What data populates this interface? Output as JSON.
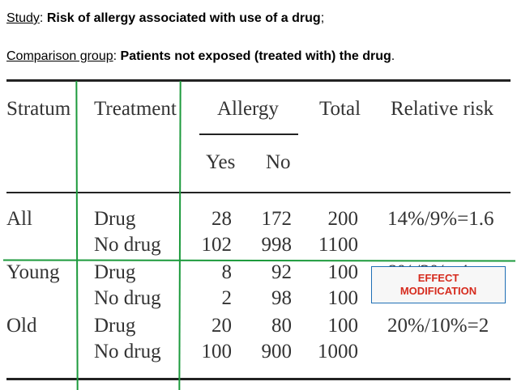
{
  "header": {
    "line1": {
      "label": "Study",
      "sep": ": ",
      "text": "Risk of allergy associated with use of a drug",
      "end": ";"
    },
    "line2": {
      "label": "Comparison group",
      "sep": ": ",
      "text": "Patients not exposed (treated with) the drug",
      "end": "."
    }
  },
  "table": {
    "headers": {
      "stratum": "Stratum",
      "treatment": "Treatment",
      "allergy": "Allergy",
      "yes": "Yes",
      "no": "No",
      "total": "Total",
      "relative_risk": "Relative risk"
    },
    "rows": [
      {
        "stratum": "All",
        "treatment": "Drug",
        "yes": "28",
        "no": "172",
        "total": "200",
        "rr": "14%/9%=1.6"
      },
      {
        "stratum": "",
        "treatment": "No drug",
        "yes": "102",
        "no": "998",
        "total": "1100",
        "rr": ""
      },
      {
        "stratum": "Young",
        "treatment": "Drug",
        "yes": "8",
        "no": "92",
        "total": "100",
        "rr": "8%/2%=4"
      },
      {
        "stratum": "",
        "treatment": "No drug",
        "yes": "2",
        "no": "98",
        "total": "100",
        "rr": ""
      },
      {
        "stratum": "Old",
        "treatment": "Drug",
        "yes": "20",
        "no": "80",
        "total": "100",
        "rr": "20%/10%=2"
      },
      {
        "stratum": "",
        "treatment": "No drug",
        "yes": "100",
        "no": "900",
        "total": "1000",
        "rr": ""
      }
    ]
  },
  "annotation": {
    "line1": "EFFECT",
    "line2": "MODIFICATION"
  },
  "colors": {
    "annotation_lines": "#1c9a3c",
    "annotation_text": "#d62b1e",
    "box_border": "#1f6fb5"
  }
}
